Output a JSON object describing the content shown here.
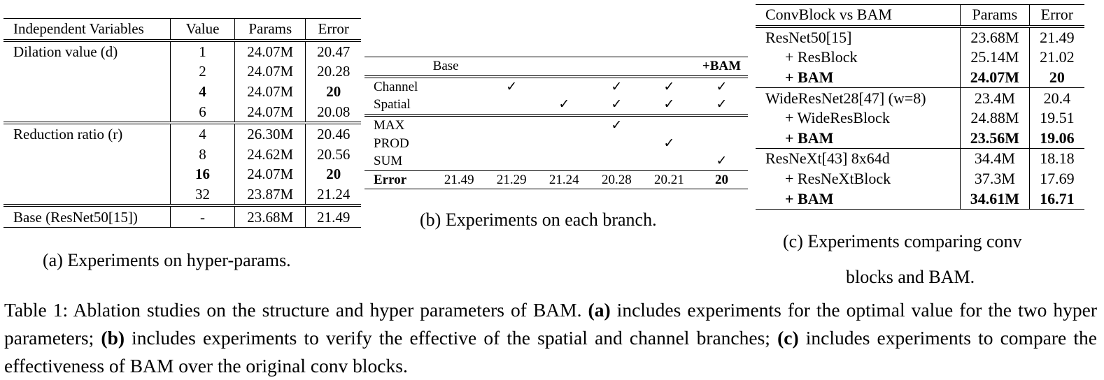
{
  "table_a": {
    "headers": [
      "Independent Variables",
      "Value",
      "Params",
      "Error"
    ],
    "groups": [
      {
        "label": "Dilation value (d)",
        "rows": [
          {
            "value": "1",
            "params": "24.07M",
            "error": "20.47",
            "bold": false
          },
          {
            "value": "2",
            "params": "24.07M",
            "error": "20.28",
            "bold": false
          },
          {
            "value": "4",
            "params": "24.07M",
            "error": "20",
            "bold": true
          },
          {
            "value": "6",
            "params": "24.07M",
            "error": "20.08",
            "bold": false
          }
        ]
      },
      {
        "label": "Reduction ratio (r)",
        "rows": [
          {
            "value": "4",
            "params": "26.30M",
            "error": "20.46",
            "bold": false
          },
          {
            "value": "8",
            "params": "24.62M",
            "error": "20.56",
            "bold": false
          },
          {
            "value": "16",
            "params": "24.07M",
            "error": "20",
            "bold": true
          },
          {
            "value": "32",
            "params": "23.87M",
            "error": "21.24",
            "bold": false
          }
        ]
      }
    ],
    "base": {
      "label": "Base (ResNet50[15])",
      "value": "-",
      "params": "23.68M",
      "error": "21.49"
    },
    "caption": "(a) Experiments on hyper-params."
  },
  "table_b": {
    "header_base": "Base",
    "header_bam": "+BAM",
    "check": "✓",
    "rows": [
      {
        "label": "Channel",
        "cells": [
          "",
          "✓",
          "",
          "✓",
          "✓",
          "✓"
        ]
      },
      {
        "label": "Spatial",
        "cells": [
          "",
          "",
          "✓",
          "✓",
          "✓",
          "✓"
        ]
      },
      {
        "label": "MAX",
        "cells": [
          "",
          "",
          "",
          "✓",
          "",
          ""
        ]
      },
      {
        "label": "PROD",
        "cells": [
          "",
          "",
          "",
          "",
          "✓",
          ""
        ]
      },
      {
        "label": "SUM",
        "cells": [
          "",
          "",
          "",
          "",
          "",
          "✓"
        ]
      },
      {
        "label": "Error",
        "cells": [
          "21.49",
          "21.29",
          "21.24",
          "20.28",
          "20.21",
          "20"
        ]
      }
    ],
    "caption": "(b) Experiments on each branch."
  },
  "table_c": {
    "headers": [
      "ConvBlock vs BAM",
      "Params",
      "Error"
    ],
    "groups": [
      {
        "rows": [
          {
            "name": "ResNet50[15]",
            "params": "23.68M",
            "error": "21.49",
            "indent": false,
            "bold": false
          },
          {
            "name": "+ ResBlock",
            "params": "25.14M",
            "error": "21.02",
            "indent": true,
            "bold": false
          },
          {
            "name": "+ BAM",
            "params": "24.07M",
            "error": "20",
            "indent": true,
            "bold": true
          }
        ]
      },
      {
        "rows": [
          {
            "name": "WideResNet28[47] (w=8)",
            "params": "23.4M",
            "error": "20.4",
            "indent": false,
            "bold": false
          },
          {
            "name": "+ WideResBlock",
            "params": "24.88M",
            "error": "19.51",
            "indent": true,
            "bold": false
          },
          {
            "name": "+ BAM",
            "params": "23.56M",
            "error": "19.06",
            "indent": true,
            "bold": true
          }
        ]
      },
      {
        "rows": [
          {
            "name": "ResNeXt[43] 8x64d",
            "params": "34.4M",
            "error": "18.18",
            "indent": false,
            "bold": false
          },
          {
            "name": "+ ResNeXtBlock",
            "params": "37.3M",
            "error": "17.69",
            "indent": true,
            "bold": false
          },
          {
            "name": "+ BAM",
            "params": "34.61M",
            "error": "16.71",
            "indent": true,
            "bold": true
          }
        ]
      }
    ],
    "caption_line1": "(c) Experiments comparing conv",
    "caption_line2": "blocks and BAM."
  },
  "main_caption": {
    "prefix": "Table 1: Ablation studies on the structure and hyper parameters of BAM. ",
    "a_label": "(a)",
    "a_text": " includes experiments for the optimal value for the two hyper parameters; ",
    "b_label": "(b)",
    "b_text": " includes experiments to verify the effective of the spatial and channel branches; ",
    "c_label": "(c)",
    "c_text": " includes experiments to compare the effectiveness of BAM over the original conv blocks."
  }
}
